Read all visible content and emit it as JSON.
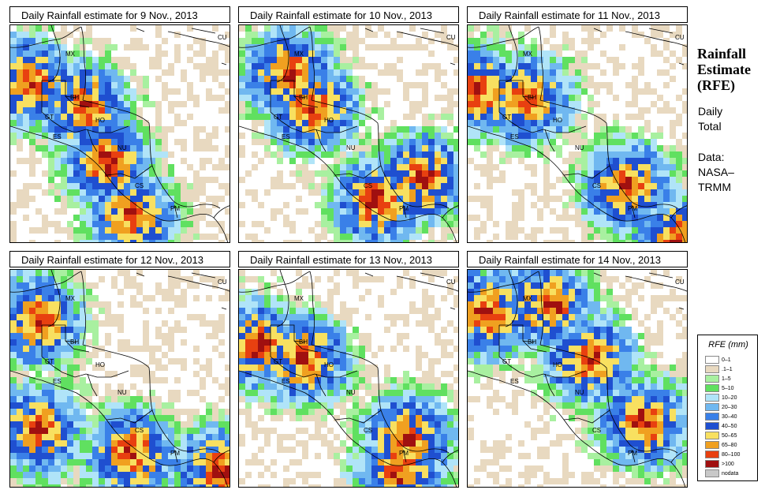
{
  "panels": [
    {
      "title": "Daily Rainfall estimate for  9 Nov., 2013"
    },
    {
      "title": "Daily Rainfall estimate for  10 Nov., 2013"
    },
    {
      "title": "Daily Rainfall estimate for  11 Nov., 2013"
    },
    {
      "title": "Daily Rainfall estimate for  12 Nov., 2013"
    },
    {
      "title": "Daily Rainfall estimate for  13 Nov., 2013"
    },
    {
      "title": "Daily Rainfall estimate for  14 Nov., 2013"
    }
  ],
  "country_labels": {
    "mx": "MX",
    "cu": "CU",
    "bh": "BH",
    "gt": "GT",
    "ho": "HO",
    "es": "ES",
    "nu": "NU",
    "cs": "CS",
    "pm": "PM"
  },
  "side": {
    "title_line1": "Rainfall",
    "title_line2": "Estimate",
    "title_line3": "(RFE)",
    "period_line1": "Daily",
    "period_line2": "Total",
    "source_line1": "Data:",
    "source_line2": "NASA–",
    "source_line3": "TRMM"
  },
  "legend": {
    "title": "RFE (mm)",
    "items": [
      {
        "label": "0–1",
        "color": "#ffffff"
      },
      {
        "label": ".1–1",
        "color": "#e8d9c0"
      },
      {
        "label": "1–5",
        "color": "#a8f0a0"
      },
      {
        "label": "5–10",
        "color": "#60e060"
      },
      {
        "label": "10–20",
        "color": "#b0e4f8"
      },
      {
        "label": "20–30",
        "color": "#70b8f0"
      },
      {
        "label": "30–40",
        "color": "#3a80e8"
      },
      {
        "label": "40–50",
        "color": "#1f4fd0"
      },
      {
        "label": "50–65",
        "color": "#f8e060"
      },
      {
        "label": "65–80",
        "color": "#f0a020"
      },
      {
        "label": "80–100",
        "color": "#e84010"
      },
      {
        "label": ">100",
        "color": "#a01010"
      },
      {
        "label": "nodata",
        "color": "#c8c8c8"
      }
    ]
  }
}
